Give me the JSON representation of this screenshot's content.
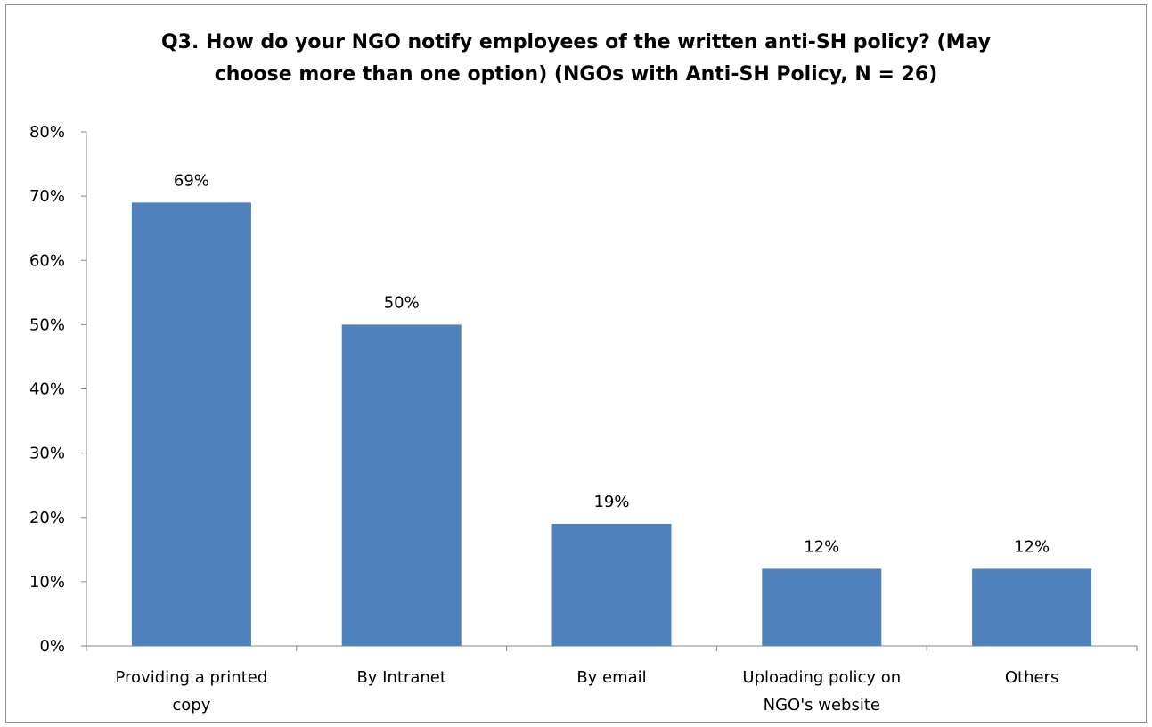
{
  "chart_data": {
    "type": "bar",
    "title_lines": [
      "Q3. How do your NGO notify employees of the written anti-SH policy? (May",
      "choose more than one option)  (NGOs with Anti-SH Policy, N = 26)"
    ],
    "categories": [
      [
        "Providing a printed",
        "copy"
      ],
      [
        "By Intranet"
      ],
      [
        "By email"
      ],
      [
        "Uploading policy on",
        "NGO's website"
      ],
      [
        "Others"
      ]
    ],
    "values": [
      0.69,
      0.5,
      0.19,
      0.12,
      0.12
    ],
    "data_labels": [
      "69%",
      "50%",
      "19%",
      "12%",
      "12%"
    ],
    "ylim": [
      0,
      0.8
    ],
    "yticks": [
      0,
      0.1,
      0.2,
      0.3,
      0.4,
      0.5,
      0.6,
      0.7,
      0.8
    ],
    "ytick_labels": [
      "0%",
      "10%",
      "20%",
      "30%",
      "40%",
      "50%",
      "60%",
      "70%",
      "80%"
    ],
    "grid": false,
    "legend": "none",
    "bar_color": "#4f81bd"
  }
}
